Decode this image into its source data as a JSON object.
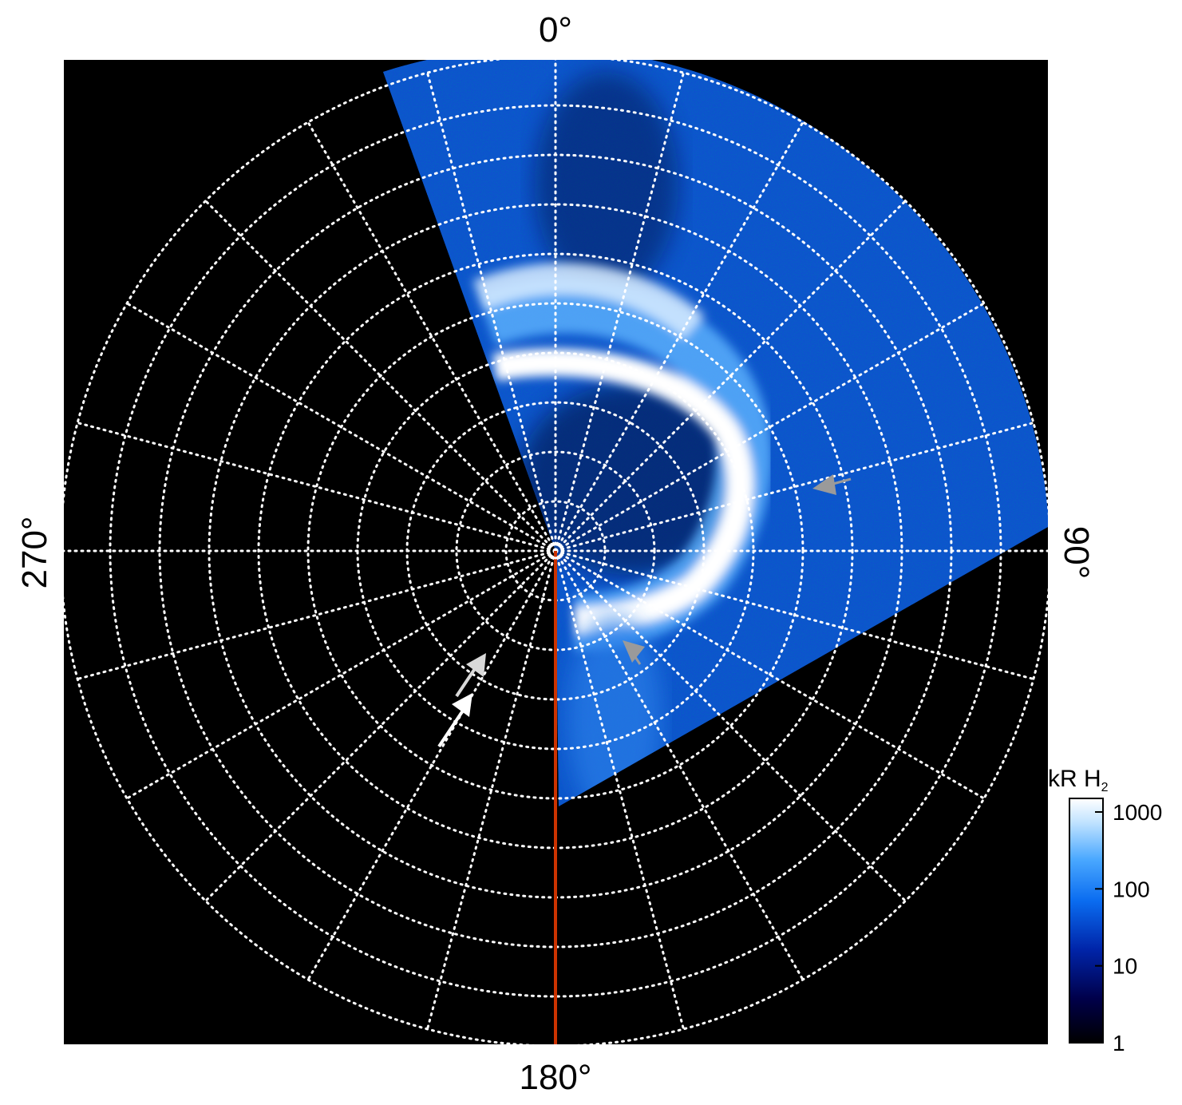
{
  "figure": {
    "azimuth_labels": {
      "top": "0°",
      "right": "90°",
      "bottom": "180°",
      "left": "270°"
    },
    "colorbar": {
      "title": "kR H",
      "title_subscript": "2",
      "scale": "log",
      "ticks": [
        "1",
        "10",
        "100",
        "1000"
      ],
      "range": [
        1,
        1500
      ],
      "colors": [
        "#000000",
        "#00004a",
        "#0024a8",
        "#0a6cf0",
        "#4aa8ff",
        "#bfe2ff",
        "#ffffff"
      ]
    },
    "grid": {
      "style": "dotted",
      "color": "#ffffff",
      "rings": 10,
      "spokes_deg": 15
    },
    "meridian_line_color": "#cc3300",
    "arrows": [
      {
        "name": "white-arrow-lower",
        "color": "#ffffff"
      },
      {
        "name": "light-arrow-upper",
        "color": "#d9d9d9"
      },
      {
        "name": "gray-arrow-right",
        "color": "#9a9a9a"
      },
      {
        "name": "gray-arrow-lower-right",
        "color": "#9a9a9a"
      }
    ]
  }
}
